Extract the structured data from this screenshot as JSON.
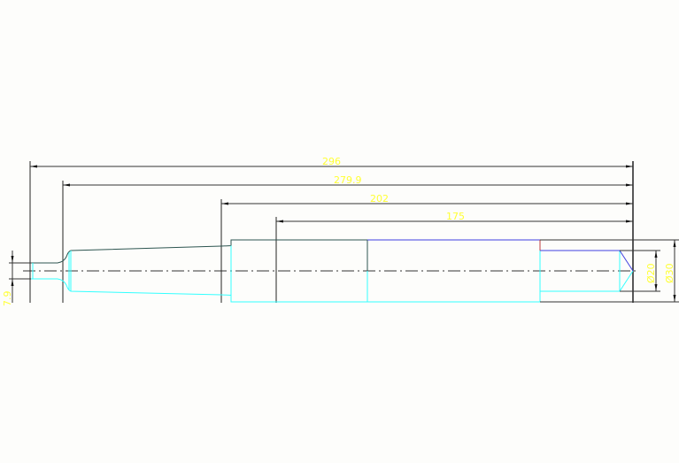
{
  "drawing": {
    "dimensions": {
      "overall_length": "296",
      "length_2": "279.9",
      "length_3": "202",
      "length_4": "175",
      "small_diameter": "Ø20",
      "large_diameter": "Ø30",
      "left_diameter": "7.9"
    },
    "colors": {
      "outline_dark": "#2d5550",
      "outline_cyan": "#33ffff",
      "outline_blue": "#4040e0",
      "edge_red": "#c04040",
      "dimension_line": "#222222",
      "dimension_text": "#ffff33"
    }
  }
}
